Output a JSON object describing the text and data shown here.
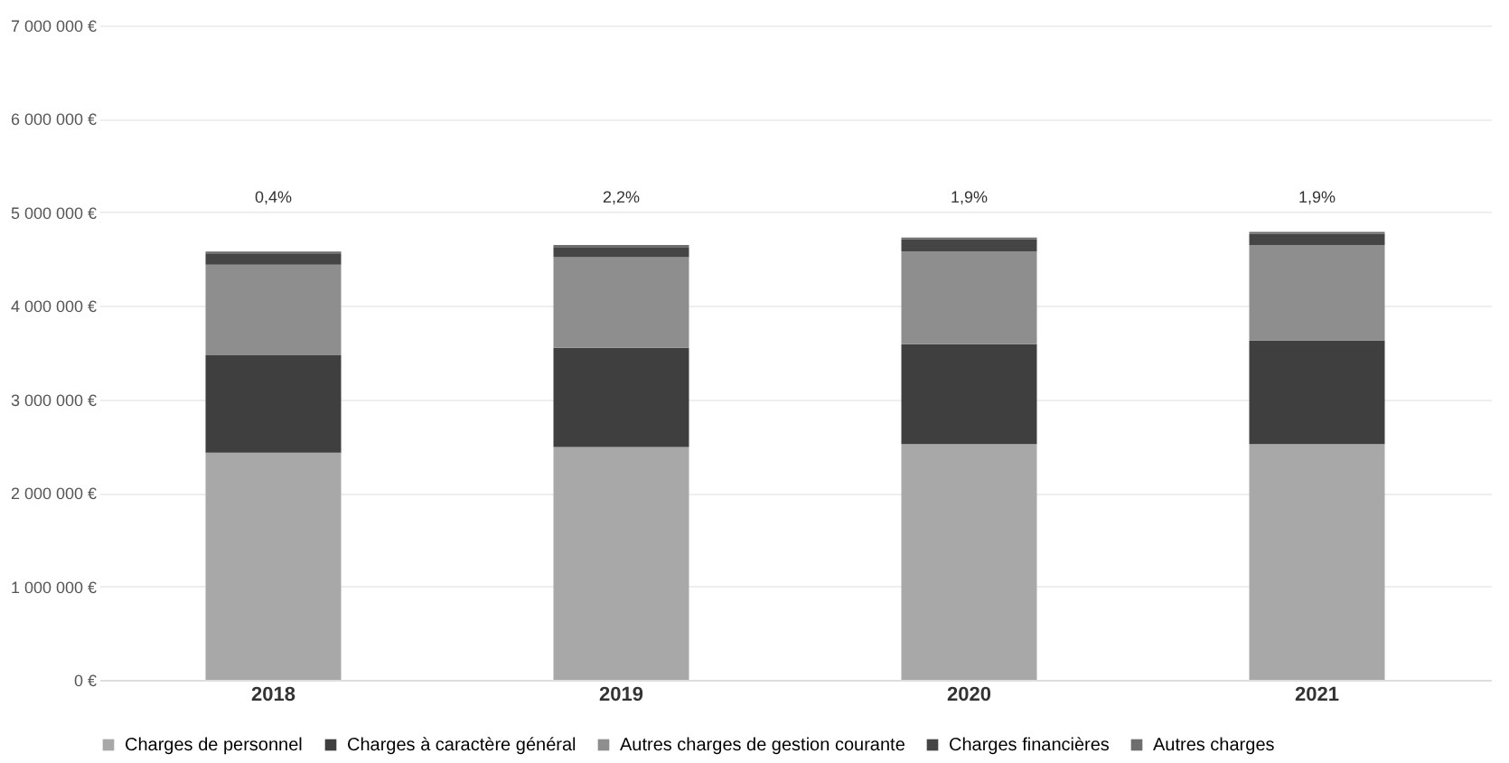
{
  "chart_data": {
    "type": "bar",
    "stacked": true,
    "categories": [
      "2018",
      "2019",
      "2020",
      "2021"
    ],
    "series": [
      {
        "name": "Charges de personnel",
        "color": "#a8a8a8",
        "values": [
          2430000,
          2490000,
          2520000,
          2520000
        ]
      },
      {
        "name": "Charges à caractère général",
        "color": "#3f3f3f",
        "values": [
          1040000,
          1060000,
          1070000,
          1110000
        ]
      },
      {
        "name": "Autres charges de gestion courante",
        "color": "#8e8e8e",
        "values": [
          970000,
          970000,
          990000,
          1020000
        ]
      },
      {
        "name": "Charges financières",
        "color": "#454545",
        "values": [
          120000,
          110000,
          130000,
          120000
        ]
      },
      {
        "name": "Autres charges",
        "color": "#6e6e6e",
        "values": [
          20000,
          20000,
          20000,
          20000
        ]
      }
    ],
    "ylim": [
      0,
      7000000
    ],
    "yticks": [
      {
        "value": 0,
        "label": "0 €"
      },
      {
        "value": 1000000,
        "label": "1 000 000 €"
      },
      {
        "value": 2000000,
        "label": "2 000 000 €"
      },
      {
        "value": 3000000,
        "label": "3 000 000 €"
      },
      {
        "value": 4000000,
        "label": "4 000 000 €"
      },
      {
        "value": 5000000,
        "label": "5 000 000 €"
      },
      {
        "value": 6000000,
        "label": "6 000 000 €"
      },
      {
        "value": 7000000,
        "label": "7 000 000 €"
      }
    ],
    "annotations": [
      "0,4%",
      "2,2%",
      "1,9%",
      "1,9%"
    ],
    "grid": "y",
    "legend": "bottom"
  }
}
